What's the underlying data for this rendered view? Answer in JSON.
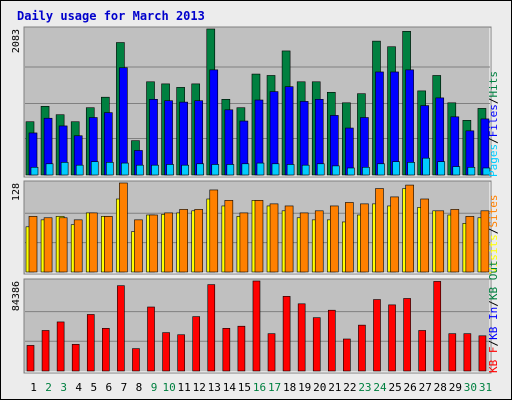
{
  "title": "Daily usage for March 2013",
  "colors": {
    "title": "#0000cc",
    "pages": "#00ccff",
    "files": "#0000ff",
    "hits": "#008040",
    "visits": "#ffff00",
    "sites": "#ff8000",
    "kbin": "#0000ff",
    "kbout": "#008040",
    "kbf": "#ff0000",
    "plot_bg": "#c0c0c0",
    "weekday": "#000000",
    "weekend": "#008040"
  },
  "chart_data": [
    {
      "type": "bar",
      "panel": "hits-files-pages",
      "ymax_label": "2083",
      "ylim": [
        0,
        2083
      ],
      "grid": true,
      "legend_items": [
        {
          "label": "Pages",
          "color": "#00ccff"
        },
        {
          "label": "/",
          "color": "#000000"
        },
        {
          "label": "Files",
          "color": "#0000ff"
        },
        {
          "label": "/",
          "color": "#000000"
        },
        {
          "label": "Hits",
          "color": "#008040"
        }
      ],
      "categories": [
        "1",
        "2",
        "3",
        "4",
        "5",
        "6",
        "7",
        "8",
        "9",
        "10",
        "11",
        "12",
        "13",
        "14",
        "15",
        "16",
        "17",
        "18",
        "19",
        "20",
        "21",
        "22",
        "23",
        "24",
        "25",
        "26",
        "27",
        "28",
        "29",
        "30",
        "31"
      ],
      "series": [
        {
          "name": "Hits",
          "color": "#008040",
          "values": [
            760,
            980,
            860,
            760,
            960,
            1110,
            1890,
            490,
            1330,
            1300,
            1250,
            1300,
            2083,
            1080,
            960,
            1440,
            1420,
            1770,
            1330,
            1330,
            1180,
            1030,
            1160,
            1910,
            1830,
            2050,
            1200,
            1420,
            1030,
            780,
            950
          ]
        },
        {
          "name": "Files",
          "color": "#0000ff",
          "values": [
            600,
            810,
            700,
            560,
            820,
            890,
            1530,
            350,
            1080,
            1060,
            1040,
            1060,
            1500,
            930,
            770,
            1070,
            1190,
            1260,
            1050,
            1080,
            850,
            670,
            820,
            1470,
            1470,
            1500,
            990,
            1100,
            830,
            630,
            800
          ]
        },
        {
          "name": "Pages",
          "color": "#00ccff",
          "values": [
            110,
            160,
            180,
            140,
            190,
            180,
            170,
            140,
            140,
            150,
            140,
            160,
            150,
            150,
            160,
            170,
            160,
            150,
            140,
            160,
            130,
            100,
            110,
            160,
            190,
            180,
            240,
            190,
            120,
            110,
            100
          ]
        }
      ]
    },
    {
      "type": "bar",
      "panel": "visits-sites",
      "ymax_label": "128",
      "ylim": [
        0,
        128
      ],
      "grid": true,
      "legend_items": [
        {
          "label": "Visits",
          "color": "#ffff00"
        },
        {
          "label": "/",
          "color": "#000000"
        },
        {
          "label": "Sites",
          "color": "#ff8000"
        }
      ],
      "categories": [
        "1",
        "2",
        "3",
        "4",
        "5",
        "6",
        "7",
        "8",
        "9",
        "10",
        "11",
        "12",
        "13",
        "14",
        "15",
        "16",
        "17",
        "18",
        "19",
        "20",
        "21",
        "22",
        "23",
        "24",
        "25",
        "26",
        "27",
        "28",
        "29",
        "30",
        "31"
      ],
      "series": [
        {
          "name": "Visits",
          "color": "#ffff00",
          "values": [
            65,
            75,
            80,
            68,
            85,
            80,
            105,
            58,
            82,
            83,
            85,
            88,
            105,
            95,
            80,
            103,
            95,
            88,
            78,
            75,
            75,
            72,
            82,
            98,
            95,
            120,
            93,
            88,
            82,
            70,
            78
          ]
        },
        {
          "name": "Sites",
          "color": "#ff8000",
          "values": [
            80,
            78,
            78,
            75,
            85,
            80,
            128,
            75,
            82,
            85,
            90,
            90,
            118,
            103,
            85,
            103,
            98,
            95,
            85,
            88,
            95,
            100,
            98,
            120,
            108,
            125,
            105,
            88,
            90,
            80,
            88
          ]
        }
      ]
    },
    {
      "type": "bar",
      "panel": "kbytes",
      "ymax_label": "84386",
      "ylim": [
        0,
        84386
      ],
      "grid": true,
      "legend_items": [
        {
          "label": "KB F",
          "color": "#ff0000"
        },
        {
          "label": "/",
          "color": "#000000"
        },
        {
          "label": "KB In",
          "color": "#0000ff"
        },
        {
          "label": "/",
          "color": "#000000"
        },
        {
          "label": "KB Out",
          "color": "#008040"
        }
      ],
      "categories": [
        "1",
        "2",
        "3",
        "4",
        "5",
        "6",
        "7",
        "8",
        "9",
        "10",
        "11",
        "12",
        "13",
        "14",
        "15",
        "16",
        "17",
        "18",
        "19",
        "20",
        "21",
        "22",
        "23",
        "24",
        "25",
        "26",
        "27",
        "28",
        "29",
        "30",
        "31"
      ],
      "series": [
        {
          "name": "KB F",
          "color": "#ff0000",
          "values": [
            24000,
            38000,
            46000,
            25000,
            53000,
            40000,
            80000,
            21000,
            60000,
            36000,
            34000,
            51000,
            81000,
            40000,
            42000,
            84386,
            35000,
            70000,
            63000,
            50000,
            57000,
            30000,
            43000,
            67000,
            62000,
            68000,
            38000,
            84000,
            35000,
            35000,
            33000
          ]
        }
      ]
    }
  ]
}
